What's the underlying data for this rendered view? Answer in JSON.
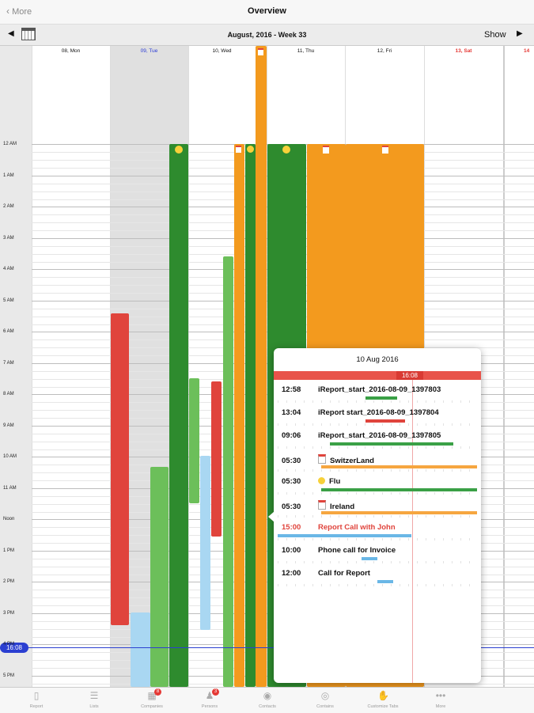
{
  "nav": {
    "back_label": "More",
    "title": "Overview"
  },
  "weekbar": {
    "title": "August, 2016 - Week 33",
    "show_label": "Show"
  },
  "days": [
    {
      "label": "08, Mon",
      "color": "#111111"
    },
    {
      "label": "09, Tue",
      "color": "#2a3bd6"
    },
    {
      "label": "10, Wed",
      "color": "#111111"
    },
    {
      "label": "11, Thu",
      "color": "#111111"
    },
    {
      "label": "12, Fri",
      "color": "#111111"
    },
    {
      "label": "13, Sat",
      "color": "#e53935"
    },
    {
      "label": "14",
      "color": "#e53935"
    }
  ],
  "hours": [
    "12 AM",
    "1 AM",
    "2 AM",
    "3 AM",
    "4 AM",
    "5 AM",
    "6 AM",
    "7 AM",
    "8 AM",
    "9 AM",
    "10 AM",
    "11 AM",
    "Noon",
    "1 PM",
    "2 PM",
    "3 PM",
    "4 PM",
    "5 PM"
  ],
  "now_time": "16:08",
  "colors": {
    "green": "#2e8b2e",
    "light_green": "#6cbf5a",
    "orange": "#f39a1e",
    "red": "#e0443c",
    "light_blue": "#a9d7f2",
    "now_blue": "#2b3fd1"
  },
  "popup": {
    "date": "10 Aug 2016",
    "now_badge": "16:08",
    "rows": [
      {
        "time": "12:58",
        "title": "iReport_start_2016-08-09_1397803",
        "icon": "",
        "color": "#111111",
        "bar_color": "#3aa046",
        "bar_start": 0.44,
        "bar_end": 0.6
      },
      {
        "time": "13:04",
        "title": "iReport start_2016-08-09_1397804",
        "icon": "",
        "color": "#111111",
        "bar_color": "#e0443c",
        "bar_start": 0.44,
        "bar_end": 0.64
      },
      {
        "time": "09:06",
        "title": "iReport_start_2016-08-09_1397805",
        "icon": "",
        "color": "#111111",
        "bar_color": "#3aa046",
        "bar_start": 0.26,
        "bar_end": 0.88
      },
      {
        "time": "05:30",
        "title": "SwitzerLand",
        "icon": "calendar-icon",
        "color": "#111111",
        "bar_color": "#f6a640",
        "bar_start": 0.22,
        "bar_end": 1.0
      },
      {
        "time": "05:30",
        "title": "Flu",
        "icon": "sick-face-icon",
        "color": "#111111",
        "bar_color": "#3aa046",
        "bar_start": 0.22,
        "bar_end": 1.0
      },
      {
        "time": "05:30",
        "title": "Ireland",
        "icon": "calendar-icon",
        "color": "#111111",
        "bar_color": "#f6a640",
        "bar_start": 0.22,
        "bar_end": 1.0
      },
      {
        "time": "15:00",
        "title": "Report Call with John",
        "icon": "",
        "color": "#e0443c",
        "bar_color": "#6ab7e6",
        "bar_start": 0.0,
        "bar_end": 0.67
      },
      {
        "time": "10:00",
        "title": "Phone call for Invoice",
        "icon": "",
        "color": "#111111",
        "bar_color": "#6ab7e6",
        "bar_start": 0.42,
        "bar_end": 0.5
      },
      {
        "time": "12:00",
        "title": "Call for Report",
        "icon": "",
        "color": "#111111",
        "bar_color": "#6ab7e6",
        "bar_start": 0.5,
        "bar_end": 0.58
      }
    ]
  },
  "tabs": [
    {
      "label": "Report",
      "icon": "document-icon",
      "badge": ""
    },
    {
      "label": "Lists",
      "icon": "list-icon",
      "badge": ""
    },
    {
      "label": "Companies",
      "icon": "companies-icon",
      "badge": "8"
    },
    {
      "label": "Persons",
      "icon": "persons-icon",
      "badge": "3"
    },
    {
      "label": "Contacts",
      "icon": "contact-icon",
      "badge": ""
    },
    {
      "label": "Contains",
      "icon": "target-icon",
      "badge": ""
    },
    {
      "label": "Customize Tabs",
      "icon": "customize-icon",
      "badge": ""
    },
    {
      "label": "More",
      "icon": "more-icon",
      "badge": ""
    }
  ]
}
